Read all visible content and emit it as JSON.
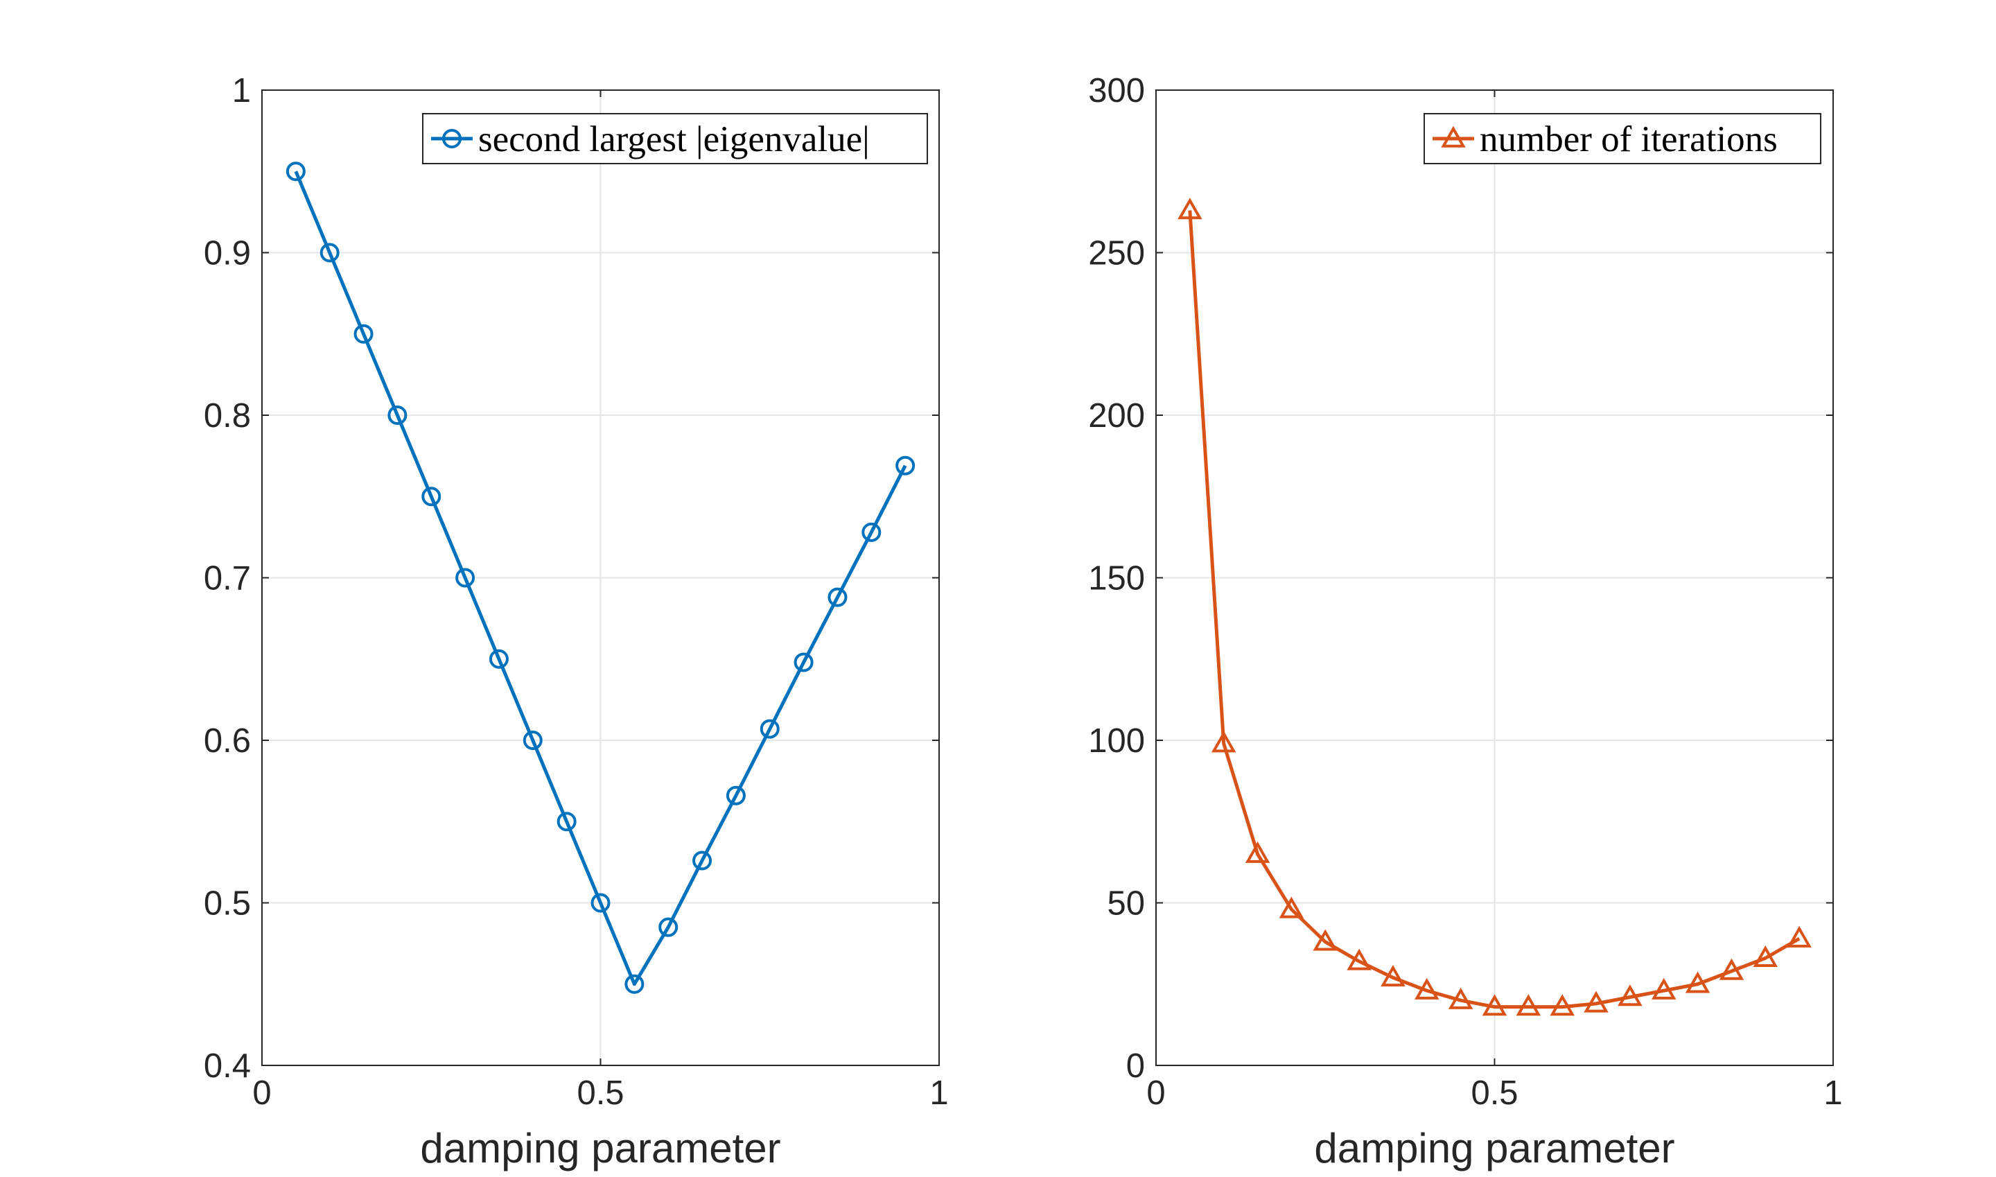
{
  "chart_data": [
    {
      "type": "line",
      "xlabel": "damping parameter",
      "ylabel": "",
      "xlim": [
        0,
        1
      ],
      "ylim": [
        0.4,
        1
      ],
      "xticks": [
        "0",
        "0.5",
        "1"
      ],
      "yticks": [
        "0.4",
        "0.5",
        "0.6",
        "0.7",
        "0.8",
        "0.9",
        "1"
      ],
      "grid": true,
      "legend_position": "top-right",
      "x": [
        0.05,
        0.1,
        0.15,
        0.2,
        0.25,
        0.3,
        0.35,
        0.4,
        0.45,
        0.5,
        0.55,
        0.6,
        0.65,
        0.7,
        0.75,
        0.8,
        0.85,
        0.9,
        0.95
      ],
      "series": [
        {
          "name": "second largest |eigenvalue|",
          "marker": "circle",
          "color": "#0072BD",
          "values": [
            0.95,
            0.9,
            0.85,
            0.8,
            0.75,
            0.7,
            0.65,
            0.6,
            0.55,
            0.5,
            0.45,
            0.485,
            0.526,
            0.566,
            0.607,
            0.648,
            0.688,
            0.728,
            0.769
          ]
        }
      ]
    },
    {
      "type": "line",
      "xlabel": "damping parameter",
      "ylabel": "",
      "xlim": [
        0,
        1
      ],
      "ylim": [
        0,
        300
      ],
      "xticks": [
        "0",
        "0.5",
        "1"
      ],
      "yticks": [
        "0",
        "50",
        "100",
        "150",
        "200",
        "250",
        "300"
      ],
      "grid": true,
      "legend_position": "top-right",
      "x": [
        0.05,
        0.1,
        0.15,
        0.2,
        0.25,
        0.3,
        0.35,
        0.4,
        0.45,
        0.5,
        0.55,
        0.6,
        0.65,
        0.7,
        0.75,
        0.8,
        0.85,
        0.9,
        0.95
      ],
      "series": [
        {
          "name": "number of iterations",
          "marker": "triangle",
          "color": "#D95319",
          "values": [
            263,
            99,
            65,
            48,
            38,
            32,
            27,
            23,
            20,
            18,
            18,
            18,
            19,
            21,
            23,
            25,
            29,
            33,
            39
          ]
        }
      ]
    }
  ]
}
